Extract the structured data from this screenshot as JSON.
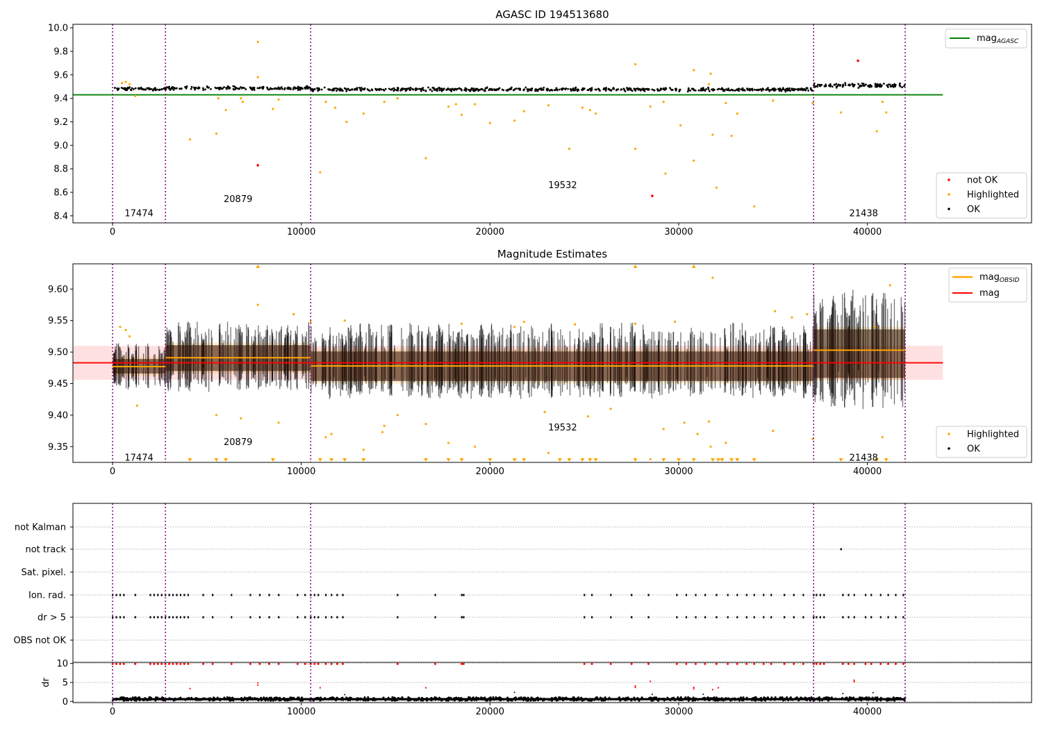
{
  "chart_data": [
    {
      "type": "scatter",
      "title": "AGASC ID 194513680",
      "xlim": [
        -2100,
        48700
      ],
      "ylim": [
        8.34,
        10.03
      ],
      "xticks": [
        0,
        10000,
        20000,
        30000,
        40000
      ],
      "yticks": [
        8.4,
        8.6,
        8.8,
        9.0,
        9.2,
        9.4,
        9.6,
        9.8,
        10.0
      ],
      "grid": false,
      "obsid_boundaries": [
        0,
        2800,
        10500,
        37150,
        42000
      ],
      "obsid_labels": [
        {
          "text": "17474",
          "x": 1400,
          "y": 8.42
        },
        {
          "text": "20879",
          "x": 6650,
          "y": 8.54
        },
        {
          "text": "19532",
          "x": 23850,
          "y": 8.66
        },
        {
          "text": "21438",
          "x": 39800,
          "y": 8.42
        }
      ],
      "lines": [
        {
          "name": "mag_AGASC",
          "color": "#008000",
          "x": [
            -2100,
            44000
          ],
          "y": [
            9.43,
            9.43
          ]
        }
      ],
      "ok_band": [
        {
          "x0": 0,
          "x1": 2800,
          "center": 9.48,
          "halfwidth": 0.018
        },
        {
          "x0": 2800,
          "x1": 10500,
          "center": 9.487,
          "halfwidth": 0.02
        },
        {
          "x0": 10500,
          "x1": 37150,
          "center": 9.475,
          "halfwidth": 0.02
        },
        {
          "x0": 37150,
          "x1": 42000,
          "center": 9.51,
          "halfwidth": 0.032
        }
      ],
      "highlighted_points": [
        [
          500,
          9.53
        ],
        [
          700,
          9.54
        ],
        [
          900,
          9.52
        ],
        [
          1200,
          9.42
        ],
        [
          4100,
          9.05
        ],
        [
          5500,
          9.1
        ],
        [
          5600,
          9.4
        ],
        [
          6000,
          9.3
        ],
        [
          6800,
          9.4
        ],
        [
          6900,
          9.37
        ],
        [
          7700,
          9.88
        ],
        [
          7700,
          9.58
        ],
        [
          8500,
          9.31
        ],
        [
          8800,
          9.39
        ],
        [
          11000,
          8.77
        ],
        [
          11300,
          9.37
        ],
        [
          11800,
          9.32
        ],
        [
          12400,
          9.2
        ],
        [
          13300,
          9.27
        ],
        [
          14400,
          9.37
        ],
        [
          15100,
          9.4
        ],
        [
          16600,
          8.89
        ],
        [
          17800,
          9.33
        ],
        [
          18200,
          9.35
        ],
        [
          18500,
          9.26
        ],
        [
          19200,
          9.35
        ],
        [
          20000,
          9.19
        ],
        [
          21300,
          9.21
        ],
        [
          21800,
          9.29
        ],
        [
          23100,
          9.34
        ],
        [
          24200,
          8.97
        ],
        [
          24900,
          9.32
        ],
        [
          25300,
          9.3
        ],
        [
          25600,
          9.27
        ],
        [
          27700,
          9.69
        ],
        [
          27700,
          8.97
        ],
        [
          28500,
          9.33
        ],
        [
          29200,
          9.37
        ],
        [
          29300,
          8.76
        ],
        [
          30100,
          9.17
        ],
        [
          30800,
          9.64
        ],
        [
          30800,
          8.87
        ],
        [
          31600,
          9.52
        ],
        [
          31700,
          9.61
        ],
        [
          31800,
          9.09
        ],
        [
          32000,
          8.64
        ],
        [
          32500,
          9.36
        ],
        [
          32800,
          9.08
        ],
        [
          33100,
          9.27
        ],
        [
          34000,
          8.48
        ],
        [
          35000,
          9.38
        ],
        [
          37100,
          9.36
        ],
        [
          38600,
          9.28
        ],
        [
          40500,
          9.12
        ],
        [
          40800,
          9.37
        ],
        [
          41000,
          9.28
        ]
      ],
      "not_ok_points": [
        [
          7700,
          8.83
        ],
        [
          28600,
          8.57
        ],
        [
          39500,
          9.72
        ]
      ],
      "legend": [
        {
          "label": "mag",
          "sub": "AGASC",
          "kind": "line",
          "color": "#008000",
          "position": "upper right"
        },
        {
          "label": "not OK",
          "kind": "point",
          "color": "#ff0000",
          "position": "lower right"
        },
        {
          "label": "Highlighted",
          "kind": "point",
          "color": "#ffa500",
          "position": "lower right"
        },
        {
          "label": "OK",
          "kind": "point",
          "color": "#000000",
          "position": "lower right"
        }
      ]
    },
    {
      "type": "scatter",
      "title": "Magnitude Estimates",
      "xlim": [
        -2100,
        48700
      ],
      "ylim": [
        9.325,
        9.64
      ],
      "xticks": [
        0,
        10000,
        20000,
        30000,
        40000
      ],
      "yticks": [
        9.35,
        9.4,
        9.45,
        9.5,
        9.55,
        9.6
      ],
      "grid": false,
      "obsid_boundaries": [
        0,
        2800,
        10500,
        37150,
        42000
      ],
      "obsid_labels": [
        {
          "text": "17474",
          "x": 1400,
          "y": 9.332
        },
        {
          "text": "20879",
          "x": 6650,
          "y": 9.357
        },
        {
          "text": "19532",
          "x": 23850,
          "y": 9.38
        },
        {
          "text": "21438",
          "x": 39800,
          "y": 9.332
        }
      ],
      "lines": [
        {
          "name": "mag",
          "color": "#ff0000",
          "x": [
            -2100,
            44000
          ],
          "y": [
            9.483,
            9.483
          ]
        },
        {
          "name": "mag_OBSID",
          "color": "#ffa500",
          "x": [
            0,
            2800
          ],
          "y": [
            9.477,
            9.477
          ]
        },
        {
          "name": "mag_OBSID",
          "color": "#ffa500",
          "x": [
            2800,
            10500
          ],
          "y": [
            9.491,
            9.491
          ]
        },
        {
          "name": "mag_OBSID",
          "color": "#ffa500",
          "x": [
            10500,
            37150
          ],
          "y": [
            9.478,
            9.478
          ]
        },
        {
          "name": "mag_OBSID",
          "color": "#ffa500",
          "x": [
            37150,
            42000
          ],
          "y": [
            9.503,
            9.503
          ]
        }
      ],
      "mag_band": {
        "x0": -2100,
        "x1": 44000,
        "y0": 9.456,
        "y1": 9.51
      },
      "obsid_bands": [
        {
          "x0": 0,
          "x1": 2800,
          "y0": 9.462,
          "y1": 9.493
        },
        {
          "x0": 2800,
          "x1": 10500,
          "y0": 9.466,
          "y1": 9.515
        },
        {
          "x0": 10500,
          "x1": 37150,
          "y0": 9.45,
          "y1": 9.505
        },
        {
          "x0": 37150,
          "x1": 42000,
          "y0": 9.455,
          "y1": 9.54
        }
      ],
      "ok_segments": [
        {
          "x0": 0,
          "x1": 2800,
          "lo": 9.44,
          "hi": 9.515,
          "center": 9.477
        },
        {
          "x0": 2800,
          "x1": 10500,
          "lo": 9.435,
          "hi": 9.55,
          "center": 9.49
        },
        {
          "x0": 10500,
          "x1": 37150,
          "lo": 9.425,
          "hi": 9.548,
          "center": 9.477
        },
        {
          "x0": 37150,
          "x1": 42000,
          "lo": 9.405,
          "hi": 9.6,
          "center": 9.503
        }
      ],
      "highlighted_points": [
        [
          400,
          9.54
        ],
        [
          700,
          9.535
        ],
        [
          900,
          9.525
        ],
        [
          1300,
          9.415
        ],
        [
          5500,
          9.4
        ],
        [
          6800,
          9.395
        ],
        [
          7700,
          9.575
        ],
        [
          8800,
          9.388
        ],
        [
          9600,
          9.56
        ],
        [
          10500,
          9.548
        ],
        [
          11300,
          9.365
        ],
        [
          11600,
          9.37
        ],
        [
          12300,
          9.55
        ],
        [
          13300,
          9.345
        ],
        [
          14300,
          9.373
        ],
        [
          14400,
          9.383
        ],
        [
          15100,
          9.4
        ],
        [
          16600,
          9.386
        ],
        [
          17800,
          9.356
        ],
        [
          18500,
          9.545
        ],
        [
          19200,
          9.35
        ],
        [
          21300,
          9.54
        ],
        [
          21800,
          9.548
        ],
        [
          22900,
          9.405
        ],
        [
          23100,
          9.34
        ],
        [
          24500,
          9.544
        ],
        [
          25200,
          9.398
        ],
        [
          26400,
          9.41
        ],
        [
          27700,
          9.545
        ],
        [
          28500,
          9.33
        ],
        [
          29200,
          9.378
        ],
        [
          29800,
          9.548
        ],
        [
          30300,
          9.388
        ],
        [
          31000,
          9.37
        ],
        [
          31600,
          9.39
        ],
        [
          31700,
          9.35
        ],
        [
          31800,
          9.618
        ],
        [
          32500,
          9.356
        ],
        [
          35000,
          9.375
        ],
        [
          35100,
          9.565
        ],
        [
          36000,
          9.555
        ],
        [
          36800,
          9.56
        ],
        [
          37100,
          9.362
        ],
        [
          40800,
          9.365
        ],
        [
          41200,
          9.606
        ],
        [
          40400,
          9.54
        ]
      ],
      "clipped_low_x": [
        4100,
        5500,
        6000,
        8500,
        11000,
        11600,
        12300,
        13300,
        16600,
        17800,
        18500,
        20000,
        21300,
        21800,
        23700,
        24200,
        24900,
        25300,
        25600,
        27700,
        29200,
        30000,
        30800,
        31800,
        32100,
        32300,
        32800,
        33100,
        34000,
        38600,
        40500,
        41000
      ],
      "clipped_high_x": [
        7700,
        27700,
        30800
      ],
      "legend": [
        {
          "label": "mag",
          "sub": "OBSID",
          "kind": "line",
          "color": "#ffa500",
          "position": "upper right"
        },
        {
          "label": "mag",
          "kind": "line",
          "color": "#ff0000",
          "position": "upper right"
        },
        {
          "label": "Highlighted",
          "kind": "point",
          "color": "#ffa500",
          "position": "lower right"
        },
        {
          "label": "OK",
          "kind": "point",
          "color": "#000000",
          "position": "lower right"
        }
      ]
    },
    {
      "type": "scatter",
      "title": "",
      "xlim": [
        -2100,
        48700
      ],
      "categories": [
        "not Kalman",
        "not track",
        "Sat. pixel.",
        "Ion. rad.",
        "dr > 5",
        "OBS not OK"
      ],
      "obsid_boundaries": [
        0,
        2800,
        10500,
        37150,
        42000
      ],
      "flag_points": {
        "not track": [
          38600
        ],
        "Ion. rad.": [
          0,
          200,
          400,
          600,
          1200,
          2000,
          2200,
          2400,
          2600,
          2800,
          3000,
          3200,
          3400,
          3600,
          3800,
          4000,
          4800,
          5300,
          6300,
          7300,
          7800,
          8300,
          8800,
          9800,
          10200,
          10500,
          10700,
          10900,
          11300,
          11600,
          11900,
          12200,
          15100,
          17100,
          18500,
          18600,
          25000,
          25400,
          26400,
          27500,
          28400,
          29900,
          30400,
          30900,
          31400,
          32000,
          32600,
          33100,
          33600,
          34000,
          34500,
          34900,
          35600,
          36100,
          36600,
          37150,
          37300,
          37500,
          37700,
          38700,
          39000,
          39300,
          39900,
          40200,
          40700,
          41100,
          41500,
          41900
        ],
        "dr > 5": [
          0,
          200,
          400,
          600,
          1200,
          2000,
          2200,
          2400,
          2600,
          2800,
          3000,
          3200,
          3400,
          3600,
          3800,
          4000,
          4800,
          5300,
          6300,
          7300,
          7800,
          8300,
          8800,
          9800,
          10200,
          10500,
          10700,
          10900,
          11300,
          11600,
          11900,
          12200,
          15100,
          17100,
          18500,
          18600,
          25000,
          25400,
          26400,
          27500,
          28400,
          29900,
          30400,
          30900,
          31400,
          32000,
          32600,
          33100,
          33600,
          34000,
          34500,
          34900,
          35600,
          36100,
          36600,
          37150,
          37300,
          37500,
          37700,
          38700,
          39000,
          39300,
          39900,
          40200,
          40700,
          41100,
          41500,
          41900
        ]
      }
    },
    {
      "type": "scatter",
      "title": "",
      "ylabel": "dr",
      "xlim": [
        -2100,
        48700
      ],
      "ylim": [
        -0.3,
        10.3
      ],
      "xticks": [
        0,
        10000,
        20000,
        30000,
        40000
      ],
      "yticks": [
        0,
        5,
        10
      ],
      "grid": true,
      "obsid_boundaries": [
        0,
        2800,
        10500,
        37150,
        42000
      ],
      "capped_red_x": [
        0,
        200,
        400,
        600,
        1200,
        2000,
        2200,
        2400,
        2600,
        2800,
        3000,
        3200,
        3400,
        3600,
        3800,
        4000,
        4800,
        5300,
        6300,
        7300,
        7800,
        8300,
        8800,
        9800,
        10200,
        10500,
        10700,
        10900,
        11300,
        11600,
        11900,
        12200,
        15100,
        17100,
        18500,
        18600,
        25000,
        25400,
        26400,
        27500,
        28400,
        29900,
        30400,
        30900,
        31400,
        32000,
        32600,
        33100,
        33600,
        34000,
        34500,
        34900,
        35600,
        36100,
        36600,
        37150,
        37300,
        37500,
        37700,
        38700,
        39000,
        39300,
        39900,
        40200,
        40700,
        41100,
        41500,
        41900
      ],
      "mid_red_points": [
        [
          4100,
          3.4
        ],
        [
          7700,
          4.3
        ],
        [
          7700,
          4.9
        ],
        [
          11000,
          3.6
        ],
        [
          16600,
          3.6
        ],
        [
          27700,
          3.7
        ],
        [
          27700,
          4.1
        ],
        [
          28500,
          5.3
        ],
        [
          30800,
          3.3
        ],
        [
          30800,
          3.7
        ],
        [
          31800,
          3.1
        ],
        [
          32100,
          3.6
        ],
        [
          39300,
          5.2
        ],
        [
          39300,
          5.6
        ]
      ],
      "black_ok_band": {
        "lo": 0.2,
        "hi": 1.1
      },
      "black_outliers": [
        [
          12300,
          1.8
        ],
        [
          21300,
          2.4
        ],
        [
          28600,
          1.9
        ],
        [
          31300,
          1.9
        ],
        [
          38700,
          2.1
        ],
        [
          40300,
          2.3
        ]
      ]
    }
  ]
}
